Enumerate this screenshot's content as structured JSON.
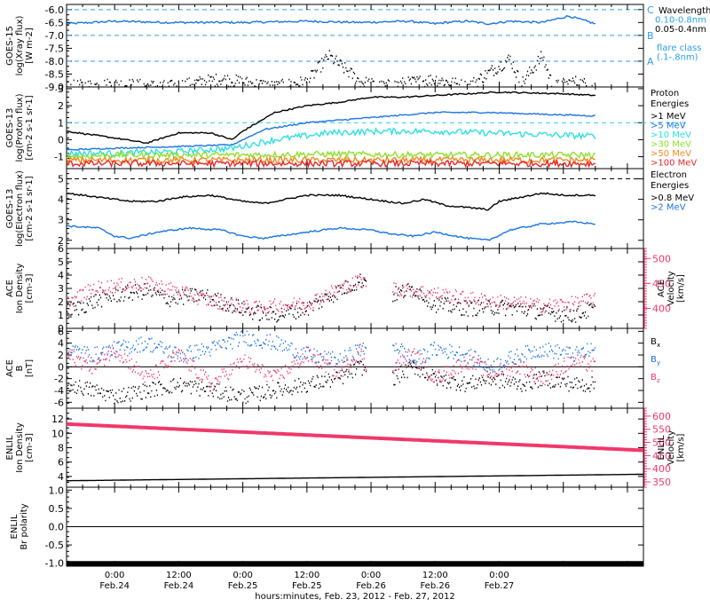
{
  "colors": {
    "black": "#000000",
    "blue": "#1a75e0",
    "cyan": "#29c8f0",
    "cyan2": "#2de0e0",
    "green": "#8ee02a",
    "yellow": "#e8c81c",
    "orange": "#f08a24",
    "red": "#e82828",
    "pink": "#f0386a",
    "dash_cyan": "#2aa0e8"
  },
  "x_axis": {
    "tick_labels": [
      {
        "time": "0:00",
        "date": "Feb.24"
      },
      {
        "time": "12:00",
        "date": "Feb.24"
      },
      {
        "time": "0:00",
        "date": "Feb.25"
      },
      {
        "time": "12:00",
        "date": "Feb.25"
      },
      {
        "time": "0:00",
        "date": "Feb.26"
      },
      {
        "time": "12:00",
        "date": "Feb.26"
      },
      {
        "time": "0:00",
        "date": "Feb.27"
      }
    ],
    "label": "hours:minutes, Feb. 23, 2012 - Feb. 27, 2012",
    "xlim_hours": [
      -9,
      99
    ]
  },
  "chart_data": [
    {
      "type": "line",
      "panel": "GOES-15 X-ray",
      "ylabel_lines": [
        "GOES-15",
        "log(Xray flux)",
        "[W m-2]"
      ],
      "yticks": [
        "-6.0",
        "-6.5",
        "-7.0",
        "-7.5",
        "-8.0",
        "-8.5",
        "-9.0"
      ],
      "ylim": [
        -9.0,
        -5.8
      ],
      "flare_levels": [
        {
          "label": "C",
          "value": -6.0
        },
        {
          "label": "B",
          "value": -7.0
        },
        {
          "label": "A",
          "value": -8.0
        }
      ],
      "legend": [
        "Wavelength",
        "0.10-0.8nm",
        "0.05-0.4nm",
        "",
        "flare class",
        "(.1-.8nm)"
      ],
      "series": [
        {
          "name": "0.10-0.8nm",
          "color": "blue",
          "x": [
            -9,
            0,
            10,
            24,
            36,
            46,
            55,
            60,
            62,
            66,
            70,
            74,
            80,
            85,
            90
          ],
          "y": [
            -6.55,
            -6.45,
            -6.5,
            -6.5,
            -6.45,
            -6.5,
            -6.45,
            -6.55,
            -6.5,
            -6.45,
            -6.55,
            -6.45,
            -6.5,
            -6.25,
            -6.55
          ]
        },
        {
          "name": "0.05-0.4nm",
          "color": "black",
          "x": [
            -9,
            0,
            10,
            20,
            30,
            36,
            40,
            46,
            50,
            60,
            66,
            74,
            76,
            80,
            82,
            86,
            90
          ],
          "y": [
            -9.0,
            -8.9,
            -9.0,
            -8.7,
            -9.0,
            -8.8,
            -7.8,
            -8.8,
            -9.0,
            -8.7,
            -9.0,
            -7.9,
            -8.9,
            -7.8,
            -9.0,
            -8.8,
            -9.0
          ]
        }
      ]
    },
    {
      "type": "line",
      "panel": "GOES-13 Proton",
      "ylabel_lines": [
        "GOES-13",
        "log(Proton flux)",
        "[cm-2 s-1 sr-1]"
      ],
      "yticks": [
        "3",
        "2",
        "1",
        "0",
        "-1"
      ],
      "ylim": [
        -1.7,
        3.1
      ],
      "legend_title": [
        "Proton",
        "Energies"
      ],
      "series": [
        {
          "name": ">1 MeV",
          "color": "black",
          "x": [
            -9,
            0,
            6,
            12,
            18,
            22,
            24,
            30,
            36,
            42,
            48,
            54,
            60,
            66,
            72,
            78,
            84,
            90
          ],
          "y": [
            0.5,
            0.1,
            -0.2,
            0.4,
            0.4,
            0.0,
            0.5,
            1.6,
            2.0,
            2.2,
            2.5,
            2.5,
            2.6,
            2.7,
            2.8,
            2.75,
            2.7,
            2.6
          ]
        },
        {
          "name": ">5 MeV",
          "color": "blue",
          "x": [
            -9,
            0,
            12,
            22,
            28,
            36,
            48,
            60,
            70,
            80,
            90
          ],
          "y": [
            -0.6,
            -0.5,
            -0.4,
            -0.3,
            0.6,
            1.0,
            1.3,
            1.6,
            1.6,
            1.5,
            1.4
          ]
        },
        {
          "name": ">10 MeV",
          "color": "cyan2",
          "x": [
            -9,
            0,
            12,
            22,
            30,
            40,
            50,
            60,
            70,
            80,
            90
          ],
          "y": [
            -0.8,
            -0.8,
            -0.7,
            -0.5,
            0.0,
            0.4,
            0.5,
            0.5,
            0.4,
            0.3,
            0.2
          ]
        },
        {
          "name": ">30 MeV",
          "color": "green",
          "x": [
            -9,
            0,
            20,
            40,
            60,
            90
          ],
          "y": [
            -1.0,
            -0.9,
            -0.9,
            -0.85,
            -0.9,
            -0.9
          ]
        },
        {
          "name": ">50 MeV",
          "color": "orange",
          "x": [
            -9,
            90
          ],
          "y": [
            -1.2,
            -1.2
          ]
        },
        {
          "name": ">100 MeV",
          "color": "red",
          "x": [
            -9,
            90
          ],
          "y": [
            -1.4,
            -1.4
          ]
        }
      ]
    },
    {
      "type": "line",
      "panel": "GOES-13 Electron",
      "ylabel_lines": [
        "GOES-13",
        "log(Electron flux)",
        "[cm-2 s-1 sr-1]"
      ],
      "yticks": [
        "5",
        "4",
        "3",
        "2"
      ],
      "ylim": [
        1.6,
        5.5
      ],
      "reference_line": 5.0,
      "legend_title": [
        "Electron",
        "Energies"
      ],
      "series": [
        {
          "name": ">0.8 MeV",
          "color": "black",
          "x": [
            -9,
            -3,
            3,
            8,
            12,
            18,
            24,
            28,
            36,
            42,
            48,
            54,
            58,
            62,
            66,
            70,
            72,
            76,
            80,
            84,
            90
          ],
          "y": [
            4.3,
            4.1,
            3.9,
            3.9,
            4.1,
            4.2,
            3.9,
            3.8,
            4.2,
            4.2,
            4.0,
            3.8,
            4.0,
            3.7,
            3.6,
            3.5,
            3.9,
            4.1,
            4.3,
            4.2,
            4.2
          ]
        },
        {
          "name": ">2 MeV",
          "color": "blue",
          "x": [
            -9,
            -3,
            0,
            3,
            8,
            14,
            20,
            24,
            28,
            36,
            42,
            48,
            52,
            56,
            60,
            66,
            70,
            74,
            80,
            86,
            90
          ],
          "y": [
            2.7,
            2.6,
            2.2,
            2.1,
            2.4,
            2.6,
            2.5,
            2.2,
            2.1,
            2.4,
            2.6,
            2.5,
            2.3,
            2.2,
            2.4,
            2.1,
            2.0,
            2.5,
            2.8,
            2.9,
            2.8
          ]
        }
      ]
    },
    {
      "type": "scatter",
      "panel": "ACE density & velocity",
      "ylabel_lines": [
        "ACE",
        "Ion Density",
        "[cm-3]"
      ],
      "y2label_lines": [
        "ACE",
        "Velocity",
        "[km/s]"
      ],
      "yticks": [
        "6",
        "5",
        "4",
        "3",
        "2",
        "1",
        "0"
      ],
      "ylim": [
        0,
        6
      ],
      "y2ticks": [
        "500",
        "450",
        "400"
      ],
      "y2lim": [
        360,
        520
      ],
      "series": [
        {
          "name": "Ion Density",
          "color": "black",
          "x": [
            -9,
            -4,
            0,
            6,
            10,
            16,
            20,
            26,
            30,
            36,
            42,
            46,
            48,
            52,
            56,
            60,
            66,
            70,
            76,
            80,
            86,
            90
          ],
          "y": [
            1.2,
            2.0,
            2.5,
            2.8,
            2.2,
            2.5,
            2.0,
            1.2,
            1.0,
            1.5,
            2.8,
            3.6,
            3.5,
            2.5,
            3.0,
            1.8,
            1.5,
            1.6,
            1.5,
            1.2,
            1.0,
            1.5
          ]
        },
        {
          "name": "Velocity",
          "color": "pink",
          "x": [
            -9,
            -4,
            0,
            6,
            10,
            16,
            20,
            26,
            30,
            36,
            42,
            46,
            48,
            52,
            56,
            60,
            66,
            70,
            76,
            80,
            86,
            90
          ],
          "y": [
            410,
            440,
            445,
            450,
            440,
            420,
            410,
            400,
            405,
            410,
            440,
            455,
            450,
            440,
            435,
            430,
            420,
            415,
            410,
            405,
            410,
            420
          ]
        }
      ]
    },
    {
      "type": "scatter",
      "panel": "ACE B",
      "ylabel_lines": [
        "ACE",
        "B",
        "[nT]"
      ],
      "yticks": [
        "6",
        "4",
        "2",
        "0",
        "-2",
        "-4",
        "-6"
      ],
      "ylim": [
        -7,
        6.5
      ],
      "series": [
        {
          "name": "Bx",
          "label_main": "B",
          "label_sub": "x",
          "color": "black",
          "x": [
            -9,
            -4,
            0,
            6,
            12,
            18,
            24,
            30,
            36,
            42,
            46,
            48,
            52,
            56,
            60,
            66,
            70,
            76,
            80,
            86,
            90
          ],
          "y": [
            -3,
            -4,
            -5,
            -4,
            -3,
            -4,
            -5,
            -4,
            -3,
            -2,
            0,
            -1,
            -2,
            0,
            -2,
            -3,
            -2,
            -3,
            -2,
            -3,
            -3
          ]
        },
        {
          "name": "By",
          "label_main": "B",
          "label_sub": "y",
          "color": "blue",
          "x": [
            -9,
            -4,
            0,
            6,
            12,
            18,
            24,
            30,
            36,
            42,
            46,
            48,
            52,
            56,
            60,
            66,
            70,
            76,
            80,
            86,
            90
          ],
          "y": [
            3,
            2,
            3,
            4,
            2,
            3,
            5,
            4,
            2,
            1,
            3,
            2,
            4,
            1,
            3,
            2,
            0,
            2,
            3,
            2,
            3
          ]
        },
        {
          "name": "Bz",
          "label_main": "B",
          "label_sub": "z",
          "color": "pink",
          "x": [
            -9,
            -4,
            0,
            6,
            12,
            18,
            24,
            30,
            36,
            42,
            46,
            48,
            52,
            56,
            60,
            66,
            70,
            76,
            80,
            86,
            90
          ],
          "y": [
            2,
            0,
            3,
            -2,
            2,
            -3,
            1,
            -2,
            2,
            -1,
            3,
            -3,
            0,
            2,
            -2,
            1,
            -1,
            0,
            -2,
            1,
            0
          ]
        }
      ]
    },
    {
      "type": "line",
      "panel": "ENLIL density & velocity",
      "ylabel_lines": [
        "ENLIL",
        "Ion Density",
        "[cm-3]"
      ],
      "y2label_lines": [
        "ENLIL",
        "Velocity",
        "[km/s]"
      ],
      "yticks": [
        "12",
        "10",
        "8",
        "6",
        "4"
      ],
      "ylim": [
        2.5,
        13.5
      ],
      "y2ticks": [
        "600",
        "550",
        "500",
        "450",
        "400",
        "350"
      ],
      "y2lim": [
        330,
        630
      ],
      "series": [
        {
          "name": "Ion Density",
          "color": "black",
          "x": [
            -9,
            99
          ],
          "y": [
            3.4,
            4.3
          ]
        },
        {
          "name": "Velocity",
          "color": "pink",
          "x": [
            -9,
            99
          ],
          "y": [
            570,
            470
          ]
        }
      ]
    },
    {
      "type": "line",
      "panel": "ENLIL Br polarity",
      "ylabel_lines": [
        "ENLIL",
        "Br polarity"
      ],
      "yticks": [
        "1.0",
        "0.5",
        "0.0",
        "-0.5",
        "-1.0"
      ],
      "ylim": [
        -1.08,
        1.08
      ],
      "series": [
        {
          "name": "Br polarity",
          "color": "black",
          "x": [
            -9,
            99
          ],
          "y": [
            -1.0,
            -1.0
          ]
        }
      ]
    }
  ]
}
